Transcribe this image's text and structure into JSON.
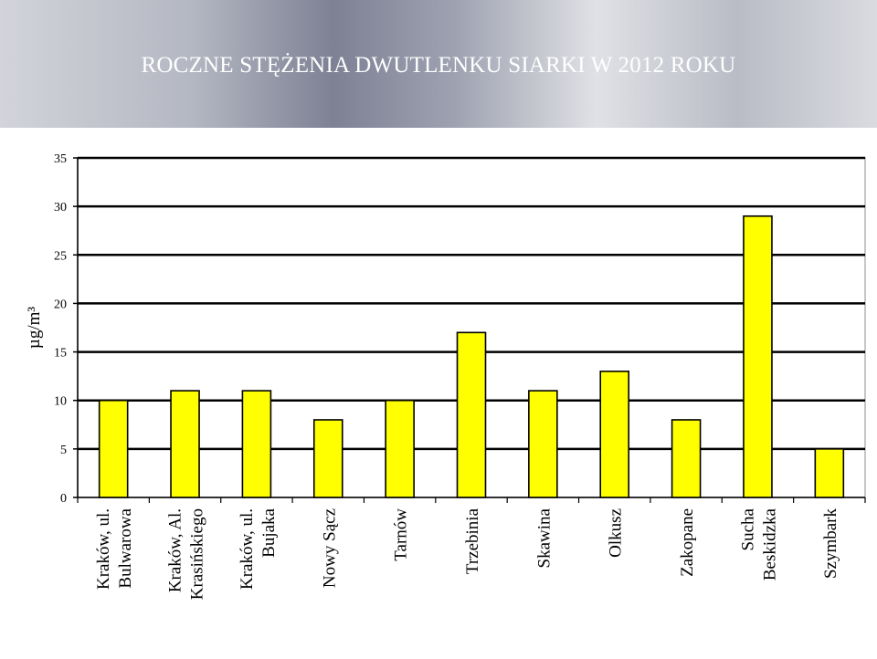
{
  "header": {
    "title": "ROCZNE STĘŻENIA DWUTLENKU SIARKI W 2012 ROKU"
  },
  "colors": {
    "bar_fill": "#ffff00",
    "bar_stroke": "#000000",
    "grid": "#000000",
    "header_title": "#ffffff"
  },
  "chart_data": {
    "type": "bar",
    "title": "",
    "xlabel": "",
    "ylabel": "µg/m³",
    "ylim": [
      0,
      35
    ],
    "yticks": [
      0,
      5,
      10,
      15,
      20,
      25,
      30,
      35
    ],
    "grid": true,
    "categories": [
      [
        "Kraków, ul.",
        "Bulwarowa"
      ],
      [
        "Kraków, Al.",
        "Krasińskiego"
      ],
      [
        "Kraków, ul.",
        "Bujaka"
      ],
      [
        "Nowy Sącz"
      ],
      [
        "Tarnów"
      ],
      [
        "Trzebinia"
      ],
      [
        "Skawina"
      ],
      [
        "Olkusz"
      ],
      [
        "Zakopane"
      ],
      [
        "Sucha",
        "Beskidzka"
      ],
      [
        "Szymbark"
      ]
    ],
    "values": [
      10,
      11,
      11,
      8,
      10,
      17,
      11,
      13,
      8,
      29,
      5
    ]
  }
}
